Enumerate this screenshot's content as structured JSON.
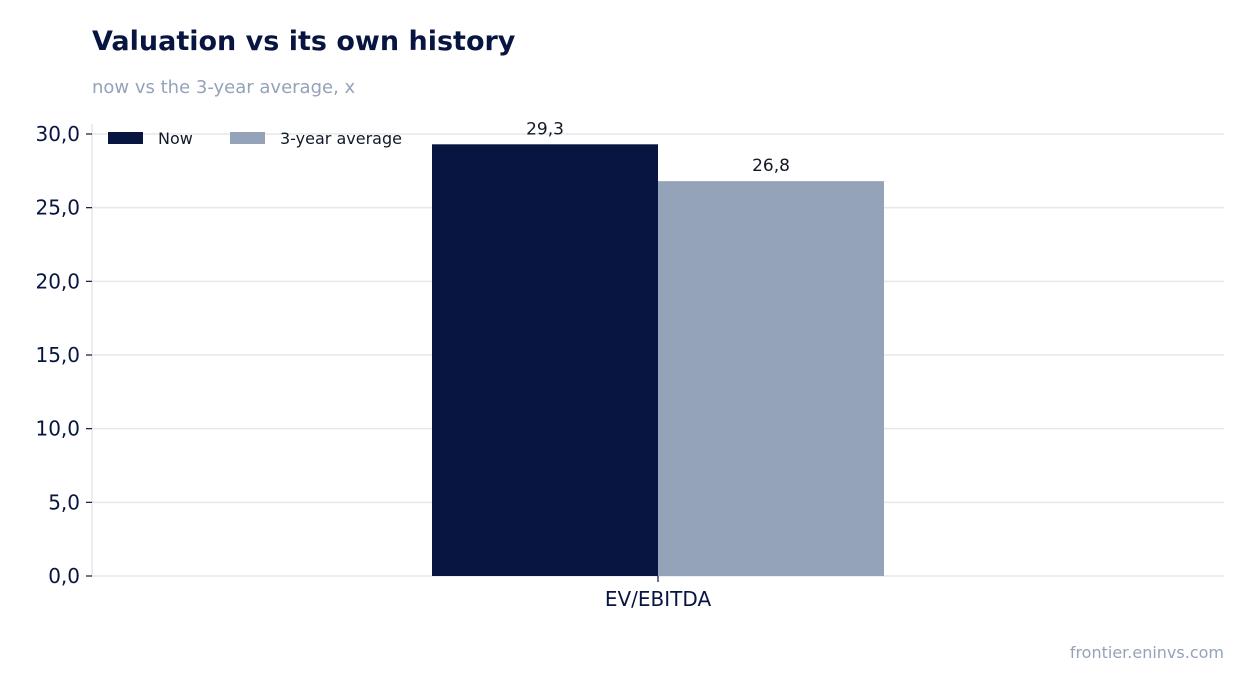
{
  "header": {
    "title": "Valuation vs its own history",
    "subtitle": "now vs the 3-year average, x"
  },
  "footer": {
    "source": "frontier.eninvs.com"
  },
  "chart_data": {
    "type": "bar",
    "title": "Valuation vs its own history",
    "subtitle": "now vs the 3-year average, x",
    "categories": [
      "EV/EBITDA"
    ],
    "series": [
      {
        "name": "Now",
        "values": [
          29.3
        ],
        "value_labels": [
          "29,3"
        ],
        "color": "#071540"
      },
      {
        "name": "3-year average",
        "values": [
          26.8
        ],
        "value_labels": [
          "26,8"
        ],
        "color": "#94a3b8"
      }
    ],
    "ylim": [
      0,
      30
    ],
    "yticks": [
      0,
      5,
      10,
      15,
      20,
      25,
      30
    ],
    "ytick_labels": [
      "0,0",
      "5,0",
      "10,0",
      "15,0",
      "20,0",
      "25,0",
      "30,0"
    ],
    "grid": true,
    "legend_position": "top-left",
    "colors": {
      "grid": "#e5e7eb",
      "axis": "#071540"
    }
  }
}
